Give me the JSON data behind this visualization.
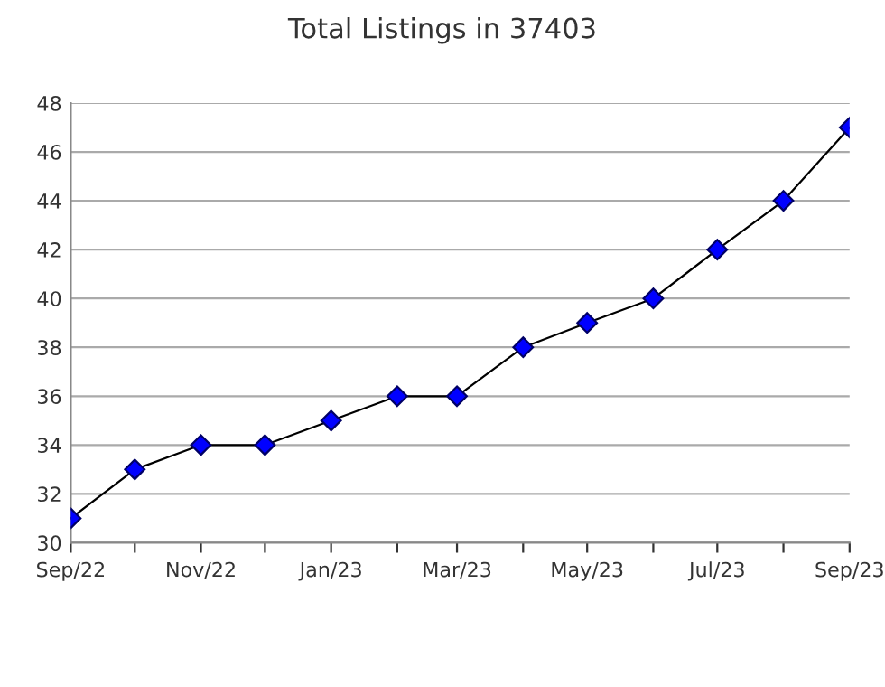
{
  "chart_data": {
    "type": "line",
    "title": "Total Listings in 37403",
    "x": [
      "2022-09",
      "2022-10",
      "2022-11",
      "2022-12",
      "2023-01",
      "2023-02",
      "2023-03",
      "2023-04",
      "2023-05",
      "2023-06",
      "2023-07",
      "2023-08",
      "2023-09"
    ],
    "series": [
      {
        "color": "#0000ff",
        "values": [
          31,
          33,
          34,
          34,
          35,
          36,
          36,
          38,
          39,
          40,
          42,
          44,
          47
        ]
      }
    ],
    "xlim": [
      "2022-09",
      "2023-09"
    ],
    "xticks": [
      {
        "value": "2022-09",
        "label": "Sep/22"
      },
      {
        "value": "2022-10",
        "label": null
      },
      {
        "value": "2022-11",
        "label": "Nov/22"
      },
      {
        "value": "2022-12",
        "label": null
      },
      {
        "value": "2023-01",
        "label": "Jan/23"
      },
      {
        "value": "2023-02",
        "label": null
      },
      {
        "value": "2023-03",
        "label": "Mar/23"
      },
      {
        "value": "2023-04",
        "label": null
      },
      {
        "value": "2023-05",
        "label": "May/23"
      },
      {
        "value": "2023-06",
        "label": null
      },
      {
        "value": "2023-07",
        "label": "Jul/23"
      },
      {
        "value": "2023-08",
        "label": null
      },
      {
        "value": "2023-09",
        "label": "Sep/23"
      }
    ],
    "ylim": [
      30,
      48
    ],
    "yticks": [
      30,
      32,
      34,
      36,
      38,
      40,
      42,
      44,
      46,
      48
    ],
    "grid": "y",
    "marker": "diamond",
    "line_style": "solid",
    "legend": false
  }
}
